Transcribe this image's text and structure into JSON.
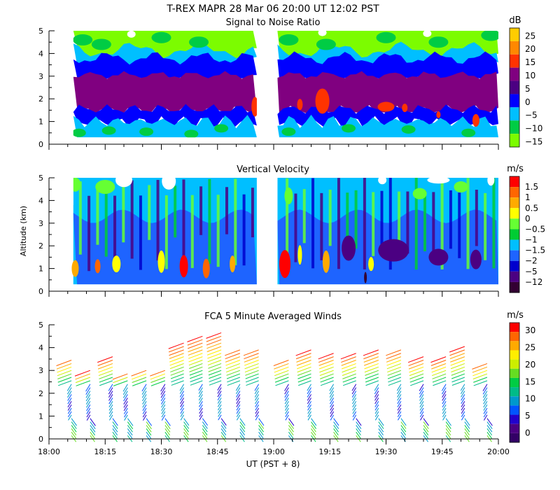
{
  "figure": {
    "title": "T-REX   MAPR 28 Mar 06   20:00 UT   12:02   PST",
    "xlabel": "UT  (PST + 8)",
    "ylabel": "Altitude (km)"
  },
  "chart_data": [
    {
      "type": "heatmap",
      "name": "snr",
      "title": "Signal to Noise Ratio",
      "xlabel": "UT  (PST + 8)",
      "ylabel": "Altitude (km)",
      "x_range_minutes": [
        0,
        120
      ],
      "data_gap_minutes": [
        55.5,
        61
      ],
      "data_extent": {
        "x_start_minutes": 6.5,
        "x_end_minutes": 120,
        "y_bottom_km": 0.3,
        "y_top_km": 5.0
      },
      "ylim": [
        0,
        5
      ],
      "yticks": [
        "0",
        "1",
        "2",
        "3",
        "4",
        "5"
      ],
      "xticks": [
        "18:00",
        "18:15",
        "18:30",
        "18:45",
        "19:00",
        "19:15",
        "19:30",
        "19:45",
        "20:00"
      ],
      "colorbar": {
        "unit": "dB",
        "labels": [
          "25",
          "20",
          "15",
          "10",
          "5",
          "0",
          "−5",
          "−10",
          "−15"
        ],
        "colors": [
          "#ffcc00",
          "#ff8800",
          "#ff3300",
          "#800080",
          "#4b0082",
          "#0000ff",
          "#00bfff",
          "#00cc44",
          "#7cfc00"
        ]
      },
      "bands": [
        {
          "name": "bright-layer",
          "top_km": 5.0,
          "bottom_km": 4.1,
          "values_db": [
            -15,
            -10
          ]
        },
        {
          "name": "cyan-layer",
          "top_km": 4.1,
          "bottom_km": 3.6,
          "values_db": [
            -5
          ]
        },
        {
          "name": "blue-layer",
          "top_km": 3.6,
          "bottom_km": 3.0,
          "values_db": [
            0,
            5
          ]
        },
        {
          "name": "purple-core",
          "top_km": 3.0,
          "bottom_km": 1.5,
          "values_db": [
            10
          ]
        },
        {
          "name": "lower-blue",
          "top_km": 1.5,
          "bottom_km": 0.9,
          "values_db": [
            5
          ]
        },
        {
          "name": "lower-cyan",
          "top_km": 0.9,
          "bottom_km": 0.3,
          "values_db": [
            -5,
            -10
          ]
        }
      ],
      "annotations": [
        "red (15 dB) patches near 1.5–2 km after 18:55 and between 19:05–19:40"
      ]
    },
    {
      "type": "heatmap",
      "name": "vertical-velocity",
      "title": "Vertical Velocity",
      "xlabel": "UT  (PST + 8)",
      "ylabel": "Altitude (km)",
      "x_range_minutes": [
        0,
        120
      ],
      "data_gap_minutes": [
        55.5,
        61
      ],
      "ylim": [
        0,
        5
      ],
      "yticks": [
        "0",
        "1",
        "2",
        "3",
        "4",
        "5"
      ],
      "xticks": [
        "18:00",
        "18:15",
        "18:30",
        "18:45",
        "19:00",
        "19:15",
        "19:30",
        "19:45",
        "20:00"
      ],
      "colorbar": {
        "unit": "m/s",
        "labels": [
          "1.5",
          "1",
          "0.5",
          "0",
          "−0.5",
          "−1",
          "−1.5",
          "−2",
          "−5",
          "−12"
        ],
        "colors": [
          "#ff0000",
          "#ff6600",
          "#ffaa00",
          "#ffff00",
          "#66ff33",
          "#00cc33",
          "#00bfff",
          "#1e64ff",
          "#0000cd",
          "#4b0082",
          "#330033"
        ]
      },
      "annotations": [
        "upward (yellow/red) pulses below 1.5 km near 18:05, 18:35, 18:43, 19:04, 19:22"
      ]
    },
    {
      "type": "barbs",
      "name": "fca-winds",
      "title": "FCA 5 Minute Averaged Winds",
      "xlabel": "UT  (PST + 8)",
      "ylim": [
        0,
        5
      ],
      "yticks": [
        "0",
        "1",
        "2",
        "3",
        "4",
        "5"
      ],
      "xticks": [
        "18:00",
        "18:15",
        "18:30",
        "18:45",
        "19:00",
        "19:15",
        "19:30",
        "19:45",
        "20:00"
      ],
      "colorbar": {
        "unit": "m/s",
        "labels": [
          "30",
          "25",
          "20",
          "15",
          "10",
          "5",
          "0"
        ],
        "colors": [
          "#ff0000",
          "#ff6600",
          "#ffaa00",
          "#ffee00",
          "#ccee00",
          "#66dd22",
          "#00cc44",
          "#00bb88",
          "#0099cc",
          "#0055ff",
          "#2200cc",
          "#4b0082",
          "#330066"
        ]
      },
      "profiles": [
        {
          "time_min": 6,
          "top_km": 3.55
        },
        {
          "time_min": 11,
          "top_km": 3.0
        },
        {
          "time_min": 17,
          "top_km": 3.65
        },
        {
          "time_min": 21,
          "top_km": 2.95
        },
        {
          "time_min": 26,
          "top_km": 3.1
        },
        {
          "time_min": 31,
          "top_km": 3.1
        },
        {
          "time_min": 36,
          "top_km": 4.2
        },
        {
          "time_min": 41,
          "top_km": 4.5
        },
        {
          "time_min": 46,
          "top_km": 4.75
        },
        {
          "time_min": 51,
          "top_km": 4.0
        },
        {
          "time_min": 56,
          "top_km": 4.0
        },
        {
          "time_min": 64,
          "top_km": 3.55
        },
        {
          "time_min": 70,
          "top_km": 3.9
        },
        {
          "time_min": 76,
          "top_km": 3.75
        },
        {
          "time_min": 82,
          "top_km": 3.75
        },
        {
          "time_min": 88,
          "top_km": 3.9
        },
        {
          "time_min": 94,
          "top_km": 4.0
        },
        {
          "time_min": 100,
          "top_km": 3.6
        },
        {
          "time_min": 106,
          "top_km": 3.65
        },
        {
          "time_min": 111,
          "top_km": 4.1
        },
        {
          "time_min": 117,
          "top_km": 3.4
        }
      ]
    }
  ]
}
